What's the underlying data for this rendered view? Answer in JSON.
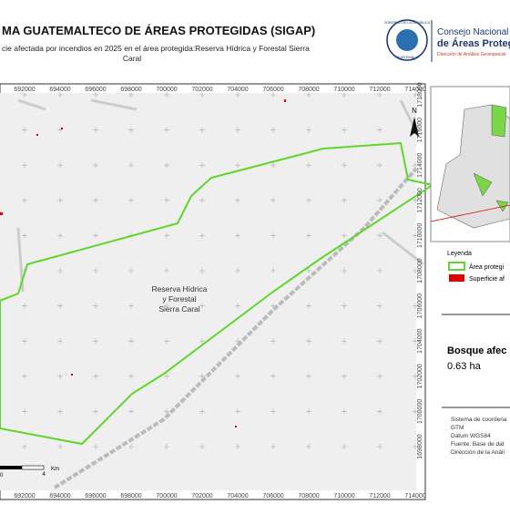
{
  "header": {
    "title": "MA GUATEMALTECO DE ÁREAS PROTEGIDAS  (SIGAP)",
    "subtitle_line1": "cie afectada por incendios en 2025 en el área protegida:Reserva Hídrica y Forestal Sierra",
    "subtitle_line2": "Caral",
    "logo_line1": "Consejo Nacional",
    "logo_line2": "de Áreas Protegi",
    "logo_line3": "Dirección de Análisis Geoespacial",
    "seal_top": "GOBIERNO DE LA REPÚBLICA",
    "seal_bottom": "GUATEMALA"
  },
  "map": {
    "x_ticks": [
      692000,
      694000,
      696000,
      698000,
      700000,
      702000,
      704000,
      706000,
      708000,
      710000,
      712000,
      714000
    ],
    "y_ticks": [
      1718000,
      1716000,
      1714000,
      1712000,
      1710000,
      1708000,
      1706000,
      1704000,
      1702000,
      1700000,
      1698000
    ],
    "area_label": [
      "Reserva Hídrica",
      "y Forestal",
      "Sierra Caral"
    ],
    "north": "N",
    "scale_zero": "0",
    "scale_end": "4",
    "scale_unit": "Km"
  },
  "legend": {
    "title": "Leyenda",
    "items": [
      "Área protegi",
      "Superficie af"
    ]
  },
  "summary": {
    "title": "Bosque afec",
    "value": "0.63 ha"
  },
  "info": [
    "Sistema de coordena",
    "GTM",
    "Datum WGS84",
    "Fuente: Base de dat",
    "Dirección de la Análi"
  ]
}
